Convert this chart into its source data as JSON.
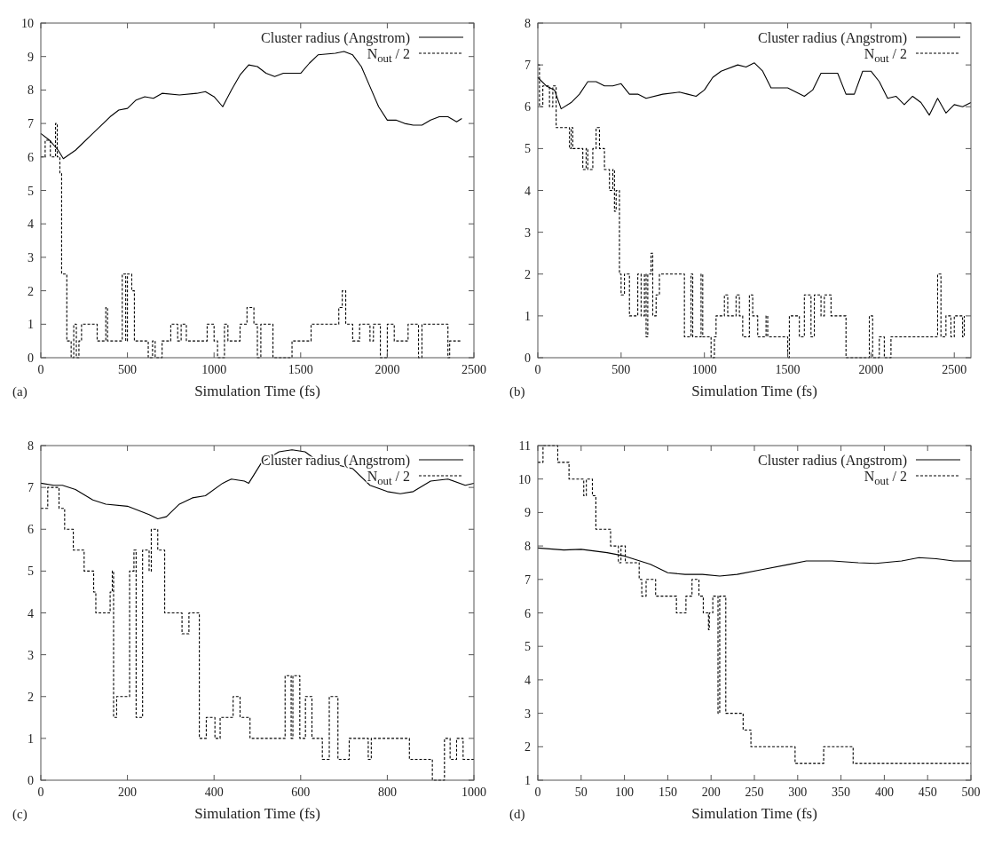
{
  "chart_data": [
    {
      "type": "line",
      "xlabel": "Simulation Time (fs)",
      "annotations": [
        "(a)"
      ],
      "xlim": [
        0,
        2500
      ],
      "xticks": [
        0,
        500,
        1000,
        1500,
        2000,
        2500
      ],
      "ylim": [
        0,
        10
      ],
      "yticks": [
        0,
        1,
        2,
        3,
        4,
        5,
        6,
        7,
        8,
        9,
        10
      ],
      "legend": "top right",
      "series": [
        {
          "name": "Cluster radius (Angstrom)",
          "type": "line",
          "color": "#000000",
          "line_style": "solid",
          "x": [
            0,
            50,
            100,
            130,
            200,
            300,
            400,
            450,
            500,
            550,
            600,
            650,
            700,
            800,
            900,
            950,
            1000,
            1050,
            1100,
            1150,
            1200,
            1250,
            1300,
            1350,
            1400,
            1500,
            1550,
            1600,
            1700,
            1750,
            1800,
            1850,
            1900,
            1950,
            2000,
            2050,
            2100,
            2150,
            2200,
            2250,
            2300,
            2350,
            2400,
            2430
          ],
          "values": [
            6.7,
            6.5,
            6.2,
            5.95,
            6.2,
            6.7,
            7.2,
            7.4,
            7.45,
            7.7,
            7.8,
            7.75,
            7.9,
            7.85,
            7.9,
            7.95,
            7.8,
            7.5,
            8.0,
            8.45,
            8.75,
            8.7,
            8.5,
            8.4,
            8.5,
            8.5,
            8.8,
            9.05,
            9.1,
            9.15,
            9.05,
            8.7,
            8.1,
            7.5,
            7.1,
            7.1,
            7.0,
            6.95,
            6.95,
            7.1,
            7.2,
            7.2,
            7.05,
            7.15
          ]
        },
        {
          "name": "N$_{out}$ / 2",
          "type": "step",
          "color": "#000000",
          "line_style": "dashed",
          "x": [
            0,
            25,
            55,
            85,
            95,
            110,
            120,
            150,
            175,
            190,
            205,
            220,
            235,
            325,
            375,
            385,
            470,
            490,
            500,
            525,
            540,
            620,
            645,
            660,
            700,
            750,
            790,
            810,
            840,
            960,
            1000,
            1020,
            1060,
            1080,
            1150,
            1190,
            1230,
            1250,
            1270,
            1340,
            1450,
            1560,
            1720,
            1740,
            1760,
            1800,
            1840,
            1900,
            1920,
            1960,
            2000,
            2040,
            2120,
            2180,
            2200,
            2350,
            2360,
            2430
          ],
          "values": [
            6,
            6.5,
            6,
            7,
            6,
            5.5,
            2.5,
            0.5,
            0,
            1,
            0,
            0.5,
            1,
            0.5,
            1.5,
            0.5,
            2.5,
            0.5,
            2.5,
            2,
            0.5,
            0,
            0.5,
            0,
            0.5,
            1,
            0.5,
            1,
            0.5,
            1,
            0.5,
            0,
            1,
            0.5,
            1,
            1.5,
            1,
            0,
            1,
            0,
            0.5,
            1,
            1.5,
            2,
            1,
            0.5,
            1,
            0.5,
            1,
            0,
            1,
            0.5,
            1,
            0,
            1,
            0,
            0.5,
            0.5
          ]
        }
      ]
    },
    {
      "type": "line",
      "xlabel": "Simulation Time (fs)",
      "annotations": [
        "(b)"
      ],
      "xlim": [
        0,
        2600
      ],
      "xticks": [
        0,
        500,
        1000,
        1500,
        2000,
        2500
      ],
      "ylim": [
        0,
        8
      ],
      "yticks": [
        0,
        1,
        2,
        3,
        4,
        5,
        6,
        7,
        8
      ],
      "legend": "top right",
      "series": [
        {
          "name": "Cluster radius (Angstrom)",
          "type": "line",
          "color": "#000000",
          "line_style": "solid",
          "x": [
            0,
            50,
            100,
            140,
            200,
            250,
            300,
            350,
            400,
            450,
            500,
            550,
            600,
            650,
            750,
            850,
            900,
            950,
            1000,
            1050,
            1100,
            1200,
            1250,
            1300,
            1350,
            1400,
            1500,
            1600,
            1650,
            1700,
            1800,
            1850,
            1900,
            1950,
            2000,
            2050,
            2100,
            2150,
            2200,
            2250,
            2300,
            2350,
            2400,
            2450,
            2500,
            2550,
            2600
          ],
          "values": [
            6.7,
            6.5,
            6.4,
            5.95,
            6.1,
            6.3,
            6.6,
            6.6,
            6.5,
            6.5,
            6.55,
            6.3,
            6.3,
            6.2,
            6.3,
            6.35,
            6.3,
            6.25,
            6.4,
            6.7,
            6.85,
            7.0,
            6.95,
            7.05,
            6.85,
            6.45,
            6.45,
            6.25,
            6.4,
            6.8,
            6.8,
            6.3,
            6.3,
            6.85,
            6.85,
            6.6,
            6.2,
            6.25,
            6.05,
            6.25,
            6.1,
            5.8,
            6.2,
            5.85,
            6.05,
            6.0,
            6.1
          ]
        },
        {
          "name": "N$_{out}$ / 2",
          "type": "step",
          "color": "#000000",
          "line_style": "dashed",
          "x": [
            0,
            10,
            30,
            70,
            90,
            110,
            190,
            200,
            210,
            270,
            290,
            300,
            330,
            350,
            370,
            400,
            430,
            450,
            460,
            470,
            490,
            500,
            520,
            550,
            600,
            620,
            640,
            650,
            660,
            680,
            690,
            710,
            730,
            880,
            920,
            930,
            980,
            990,
            1040,
            1060,
            1070,
            1120,
            1140,
            1190,
            1210,
            1230,
            1270,
            1290,
            1320,
            1370,
            1380,
            1500,
            1510,
            1570,
            1600,
            1640,
            1660,
            1700,
            1720,
            1760,
            1850,
            1990,
            2010,
            2050,
            2080,
            2120,
            2400,
            2420,
            2450,
            2480,
            2500,
            2550,
            2560
          ],
          "values": [
            7,
            6,
            6.5,
            6,
            6.5,
            5.5,
            5,
            5.5,
            5,
            4.5,
            5,
            4.5,
            5,
            5.5,
            5,
            4.5,
            4,
            4.5,
            3.5,
            4,
            2,
            1.5,
            2,
            1,
            2,
            1,
            2,
            0.5,
            2,
            2.5,
            1,
            1.5,
            2,
            0.5,
            2,
            0.5,
            2,
            0.5,
            0,
            0.5,
            1,
            1.5,
            1,
            1.5,
            1,
            0.5,
            1.5,
            1,
            0.5,
            1,
            0.5,
            0,
            1,
            0.5,
            1.5,
            0.5,
            1.5,
            1,
            1.5,
            1,
            0,
            1,
            0,
            0.5,
            0,
            0.5,
            2,
            0.5,
            1,
            0.5,
            1,
            0.5,
            1
          ]
        }
      ]
    },
    {
      "type": "line",
      "xlabel": "Simulation Time (fs)",
      "annotations": [
        "(c)"
      ],
      "xlim": [
        0,
        1000
      ],
      "xticks": [
        0,
        200,
        400,
        600,
        800,
        1000
      ],
      "ylim": [
        0,
        8
      ],
      "yticks": [
        0,
        1,
        2,
        3,
        4,
        5,
        6,
        7,
        8
      ],
      "legend": "top right",
      "series": [
        {
          "name": "Cluster radius (Angstrom)",
          "type": "line",
          "color": "#000000",
          "line_style": "solid",
          "x": [
            0,
            30,
            50,
            80,
            120,
            150,
            200,
            250,
            270,
            290,
            320,
            350,
            380,
            420,
            440,
            470,
            480,
            510,
            550,
            580,
            610,
            650,
            680,
            720,
            760,
            800,
            830,
            860,
            900,
            940,
            980,
            1000
          ],
          "values": [
            7.1,
            7.05,
            7.05,
            6.95,
            6.7,
            6.6,
            6.55,
            6.35,
            6.25,
            6.3,
            6.6,
            6.75,
            6.8,
            7.1,
            7.2,
            7.15,
            7.1,
            7.6,
            7.85,
            7.9,
            7.85,
            7.55,
            7.55,
            7.45,
            7.05,
            6.9,
            6.85,
            6.9,
            7.15,
            7.2,
            7.05,
            7.1
          ]
        },
        {
          "name": "N$_{out}$ / 2",
          "type": "step",
          "color": "#000000",
          "line_style": "dashed",
          "x": [
            0,
            16,
            42,
            55,
            75,
            100,
            122,
            127,
            160,
            165,
            168,
            175,
            205,
            215,
            220,
            235,
            250,
            255,
            270,
            286,
            326,
            342,
            366,
            382,
            402,
            414,
            444,
            460,
            483,
            564,
            578,
            582,
            598,
            611,
            626,
            650,
            666,
            686,
            712,
            756,
            763,
            851,
            904,
            932,
            945,
            960,
            975,
            1000
          ],
          "values": [
            6.5,
            7,
            6.5,
            6,
            5.5,
            5,
            4.5,
            4,
            4.5,
            5,
            1.5,
            2,
            5,
            5.5,
            1.5,
            5.5,
            5,
            6,
            5.5,
            4,
            3.5,
            4,
            1,
            1.5,
            1,
            1.5,
            2,
            1.5,
            1,
            2.5,
            1,
            2.5,
            1,
            2,
            1,
            0.5,
            2,
            0.5,
            1,
            0.5,
            1,
            0.5,
            0,
            1,
            0.5,
            1,
            0.5,
            0.5
          ]
        }
      ]
    },
    {
      "type": "line",
      "xlabel": "Simulation Time (fs)",
      "annotations": [
        "(d)"
      ],
      "xlim": [
        0,
        500
      ],
      "xticks": [
        0,
        50,
        100,
        150,
        200,
        250,
        300,
        350,
        400,
        450,
        500
      ],
      "ylim": [
        1,
        11
      ],
      "yticks": [
        1,
        2,
        3,
        4,
        5,
        6,
        7,
        8,
        9,
        10,
        11
      ],
      "legend": "top right",
      "series": [
        {
          "name": "Cluster radius (Angstrom)",
          "type": "line",
          "color": "#000000",
          "line_style": "solid",
          "x": [
            0,
            30,
            50,
            80,
            100,
            130,
            150,
            170,
            190,
            210,
            230,
            260,
            290,
            310,
            340,
            370,
            390,
            420,
            440,
            460,
            480,
            500
          ],
          "values": [
            7.94,
            7.88,
            7.9,
            7.8,
            7.7,
            7.45,
            7.2,
            7.15,
            7.15,
            7.1,
            7.15,
            7.3,
            7.45,
            7.55,
            7.55,
            7.5,
            7.48,
            7.55,
            7.65,
            7.62,
            7.55,
            7.55
          ]
        },
        {
          "name": "N$_{out}$ / 2",
          "type": "step",
          "color": "#000000",
          "line_style": "dashed",
          "x": [
            0,
            6,
            23,
            36,
            53,
            56,
            63,
            67,
            84,
            93,
            96,
            101,
            117,
            120,
            125,
            136,
            160,
            171,
            178,
            186,
            191,
            197,
            198,
            202,
            208,
            210,
            217,
            237,
            246,
            297,
            330,
            364,
            500
          ],
          "values": [
            10.5,
            11,
            10.5,
            10,
            9.5,
            10,
            9.5,
            8.5,
            8,
            7.5,
            8,
            7.5,
            7,
            6.5,
            7,
            6.5,
            6,
            6.5,
            7,
            6.5,
            6,
            5.5,
            6,
            6.5,
            3,
            6.5,
            3,
            2.5,
            2,
            1.5,
            2,
            1.5,
            1.5
          ]
        }
      ]
    }
  ]
}
